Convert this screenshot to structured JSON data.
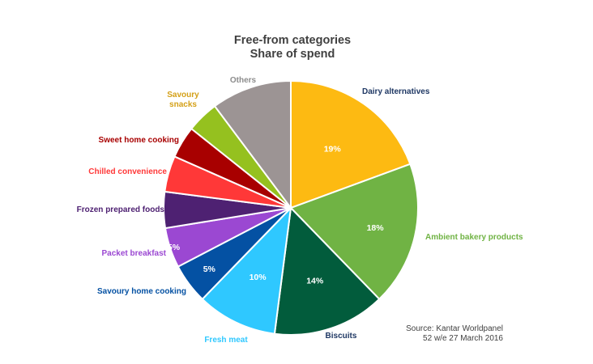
{
  "chart_data": {
    "type": "pie",
    "title": "Free-from categories",
    "subtitle": "Share of spend",
    "slices": [
      {
        "label": "Dairy alternatives",
        "value": 19,
        "data_label": "19%",
        "color": "#FDBA12",
        "label_color": "#1F3864"
      },
      {
        "label": "Ambient bakery products",
        "value": 18,
        "data_label": "18%",
        "color": "#70B344",
        "label_color": "#70B344"
      },
      {
        "label": "Biscuits",
        "value": 14,
        "data_label": "14%",
        "color": "#025C3C",
        "label_color": "#1F3864"
      },
      {
        "label": "Fresh meat",
        "value": 10,
        "data_label": "10%",
        "color": "#2FC8FF",
        "label_color": "#2FC8FF"
      },
      {
        "label": "Savoury home cooking",
        "value": 5,
        "data_label": "5%",
        "color": "#0451A3",
        "label_color": "#0451A3"
      },
      {
        "label": "Packet breakfast",
        "value": 5,
        "data_label": "5%",
        "color": "#9B48D2",
        "label_color": "#9B48D2"
      },
      {
        "label": "Frozen prepared foods",
        "value": 4.5,
        "data_label": "",
        "color": "#4E2172",
        "label_color": "#4E2172"
      },
      {
        "label": "Chilled convenience",
        "value": 4.5,
        "data_label": "",
        "color": "#FF3838",
        "label_color": "#FF3838"
      },
      {
        "label": "Sweet home cooking",
        "value": 4,
        "data_label": "",
        "color": "#A80000",
        "label_color": "#A80000"
      },
      {
        "label": "Savoury snacks",
        "value": 4,
        "data_label": "",
        "color": "#95C11F",
        "label_color": "#D4A017"
      },
      {
        "label": "Others",
        "value": 10,
        "data_label": "",
        "color": "#9C9494",
        "label_color": "#8C8C8C"
      }
    ]
  },
  "source": {
    "line1": "Source: Kantar Worldpanel",
    "line2": "52 w/e 27 March 2016"
  }
}
